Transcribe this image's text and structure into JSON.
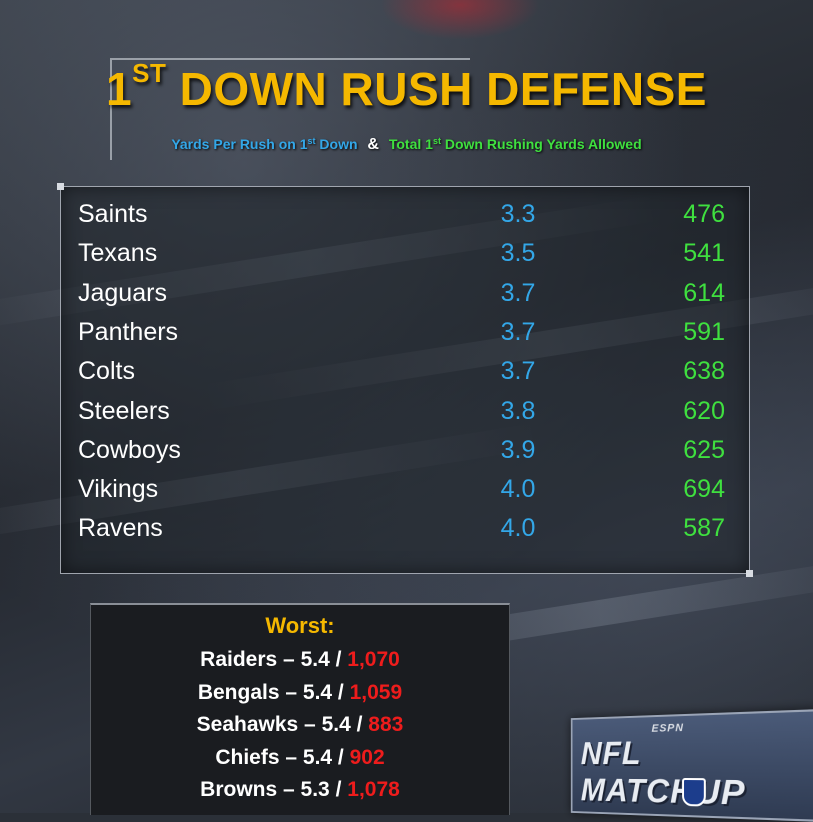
{
  "title": {
    "prefix": "1",
    "sup": "ST",
    "rest": " DOWN RUSH DEFENSE"
  },
  "subtitle": {
    "blue_prefix": "Yards Per Rush on 1",
    "blue_sup": "st",
    "blue_suffix": " Down",
    "amp": "&",
    "green_prefix": "Total 1",
    "green_sup": "st",
    "green_suffix": " Down Rushing Yards Allowed"
  },
  "colors": {
    "title": "#f5b800",
    "yards_per_rush": "#33a7e8",
    "total_yards": "#3fe03f",
    "worst_total": "#ee1c1c"
  },
  "chart_data": {
    "type": "table",
    "columns": [
      "Team",
      "Yards Per Rush on 1st Down",
      "Total 1st Down Rushing Yards Allowed"
    ],
    "rows": [
      {
        "team": "Saints",
        "ypr": "3.3",
        "total": "476"
      },
      {
        "team": "Texans",
        "ypr": "3.5",
        "total": "541"
      },
      {
        "team": "Jaguars",
        "ypr": "3.7",
        "total": "614"
      },
      {
        "team": "Panthers",
        "ypr": "3.7",
        "total": "591"
      },
      {
        "team": "Colts",
        "ypr": "3.7",
        "total": "638"
      },
      {
        "team": "Steelers",
        "ypr": "3.8",
        "total": "620"
      },
      {
        "team": "Cowboys",
        "ypr": "3.9",
        "total": "625"
      },
      {
        "team": "Vikings",
        "ypr": "4.0",
        "total": "694"
      },
      {
        "team": "Ravens",
        "ypr": "4.0",
        "total": "587"
      }
    ]
  },
  "worst": {
    "title": "Worst:",
    "rows": [
      {
        "team": "Raiders",
        "sep": " – ",
        "ypr": "5.4",
        "slash": " / ",
        "total": "1,070"
      },
      {
        "team": "Bengals",
        "sep": " – ",
        "ypr": "5.4",
        "slash": " / ",
        "total": "1,059"
      },
      {
        "team": "Seahawks",
        "sep": " – ",
        "ypr": "5.4",
        "slash": " / ",
        "total": "883"
      },
      {
        "team": "Chiefs",
        "sep": " – ",
        "ypr": "5.4",
        "slash": " / ",
        "total": "902"
      },
      {
        "team": "Browns",
        "sep": " – ",
        "ypr": "5.3",
        "slash": " / ",
        "total": "1,078"
      }
    ]
  },
  "logo": {
    "network": "ESPN",
    "show": "NFL MATCHUP",
    "icon": "nfl-shield-icon"
  }
}
